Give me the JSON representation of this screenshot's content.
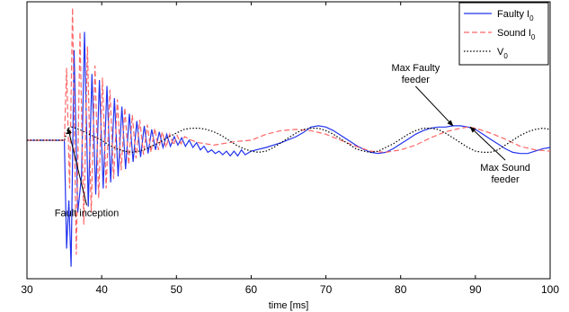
{
  "chart_data": {
    "type": "line",
    "title": "",
    "xlabel": "time [ms]",
    "ylabel": "",
    "xlim": [
      30,
      100
    ],
    "xticks": [
      30,
      40,
      50,
      60,
      70,
      80,
      90,
      100
    ],
    "ylim": [
      -1.15,
      1.15
    ],
    "grid": false,
    "legend_position": "top-right",
    "series": [
      {
        "name": "Faulty I",
        "subscript": "0",
        "color": "#2233ee",
        "style": "solid",
        "points": [
          [
            30,
            0
          ],
          [
            35,
            0
          ],
          [
            35.3,
            -0.9
          ],
          [
            35.6,
            -0.5
          ],
          [
            35.9,
            -1.05
          ],
          [
            36.3,
            0.75
          ],
          [
            36.8,
            -0.6
          ],
          [
            37.3,
            -0.3
          ],
          [
            37.7,
            0.9
          ],
          [
            38.2,
            -0.55
          ],
          [
            38.7,
            0.55
          ],
          [
            39.2,
            -0.45
          ],
          [
            39.7,
            0.5
          ],
          [
            40.2,
            -0.4
          ],
          [
            40.7,
            0.45
          ],
          [
            41.2,
            -0.35
          ],
          [
            41.7,
            0.35
          ],
          [
            42.2,
            -0.3
          ],
          [
            42.7,
            0.28
          ],
          [
            43.2,
            -0.24
          ],
          [
            43.7,
            0.22
          ],
          [
            44.2,
            -0.18
          ],
          [
            44.7,
            0.16
          ],
          [
            45.2,
            -0.14
          ],
          [
            45.7,
            0.12
          ],
          [
            46.2,
            -0.11
          ],
          [
            46.7,
            0.09
          ],
          [
            47.2,
            -0.08
          ],
          [
            47.7,
            0.07
          ],
          [
            48.2,
            -0.06
          ],
          [
            48.7,
            0.05
          ],
          [
            49.2,
            -0.05
          ],
          [
            49.7,
            0.03
          ],
          [
            50.2,
            -0.04
          ],
          [
            50.7,
            0.02
          ],
          [
            51.2,
            -0.05
          ],
          [
            51.7,
            0.0
          ],
          [
            52.2,
            -0.06
          ],
          [
            52.7,
            -0.02
          ],
          [
            53.2,
            -0.08
          ],
          [
            53.7,
            -0.05
          ],
          [
            54.2,
            -0.1
          ],
          [
            54.7,
            -0.08
          ],
          [
            55.2,
            -0.11
          ],
          [
            55.7,
            -0.09
          ],
          [
            56.2,
            -0.12
          ],
          [
            56.7,
            -0.09
          ],
          [
            57.2,
            -0.13
          ],
          [
            57.7,
            -0.09
          ],
          [
            58.2,
            -0.13
          ],
          [
            58.7,
            -0.08
          ],
          [
            59.2,
            -0.12
          ],
          [
            60,
            -0.09
          ],
          [
            62,
            -0.06
          ],
          [
            64,
            -0.02
          ],
          [
            66,
            0.03
          ],
          [
            67,
            0.065
          ],
          [
            68,
            0.11
          ],
          [
            69,
            0.12
          ],
          [
            70,
            0.11
          ],
          [
            71,
            0.08
          ],
          [
            72,
            0.04
          ],
          [
            73,
            0.0
          ],
          [
            74,
            -0.04
          ],
          [
            75,
            -0.075
          ],
          [
            76,
            -0.1
          ],
          [
            77,
            -0.11
          ],
          [
            78,
            -0.1
          ],
          [
            79,
            -0.07
          ],
          [
            80,
            -0.03
          ],
          [
            81,
            0.01
          ],
          [
            82,
            0.05
          ],
          [
            83,
            0.08
          ],
          [
            84,
            0.1
          ],
          [
            85,
            0.11
          ],
          [
            86,
            0.11
          ],
          [
            87,
            0.12
          ],
          [
            88,
            0.12
          ],
          [
            89,
            0.11
          ],
          [
            90,
            0.09
          ],
          [
            91,
            0.05
          ],
          [
            92,
            0.01
          ],
          [
            93,
            -0.03
          ],
          [
            94,
            -0.07
          ],
          [
            95,
            -0.1
          ],
          [
            96,
            -0.11
          ],
          [
            97,
            -0.11
          ],
          [
            98,
            -0.09
          ],
          [
            99,
            -0.07
          ],
          [
            100,
            -0.06
          ]
        ]
      },
      {
        "name": "Sound I",
        "subscript": "0",
        "color": "#ff6666",
        "style": "dashed",
        "points": [
          [
            30,
            0
          ],
          [
            35,
            0
          ],
          [
            35.3,
            0.6
          ],
          [
            35.7,
            -0.4
          ],
          [
            36.1,
            1.1
          ],
          [
            36.6,
            -0.95
          ],
          [
            37.1,
            0.9
          ],
          [
            37.6,
            -0.7
          ],
          [
            38.1,
            0.78
          ],
          [
            38.6,
            -0.6
          ],
          [
            39.1,
            0.62
          ],
          [
            39.6,
            -0.48
          ],
          [
            40.1,
            0.52
          ],
          [
            40.6,
            -0.4
          ],
          [
            41.1,
            0.42
          ],
          [
            41.6,
            -0.32
          ],
          [
            42.1,
            0.34
          ],
          [
            42.6,
            -0.25
          ],
          [
            43.1,
            0.27
          ],
          [
            43.6,
            -0.2
          ],
          [
            44.1,
            0.21
          ],
          [
            44.6,
            -0.15
          ],
          [
            45.1,
            0.17
          ],
          [
            45.6,
            -0.12
          ],
          [
            46.1,
            0.13
          ],
          [
            46.6,
            -0.1
          ],
          [
            47.1,
            0.1
          ],
          [
            47.6,
            -0.08
          ],
          [
            48.1,
            0.07
          ],
          [
            48.6,
            -0.06
          ],
          [
            49.1,
            0.05
          ],
          [
            49.6,
            -0.04
          ],
          [
            50.1,
            0.04
          ],
          [
            50.6,
            -0.03
          ],
          [
            51.1,
            0.03
          ],
          [
            52,
            0.0
          ],
          [
            53,
            -0.02
          ],
          [
            54,
            -0.03
          ],
          [
            55,
            -0.04
          ],
          [
            56,
            -0.03
          ],
          [
            57,
            -0.02
          ],
          [
            58,
            -0.01
          ],
          [
            60,
            0.0
          ],
          [
            62,
            0.05
          ],
          [
            64,
            0.08
          ],
          [
            66,
            0.09
          ],
          [
            68,
            0.08
          ],
          [
            70,
            0.05
          ],
          [
            72,
            0.0
          ],
          [
            74,
            -0.05
          ],
          [
            76,
            -0.09
          ],
          [
            78,
            -0.1
          ],
          [
            80,
            -0.08
          ],
          [
            82,
            -0.04
          ],
          [
            84,
            0.02
          ],
          [
            86,
            0.07
          ],
          [
            88,
            0.1
          ],
          [
            89,
            0.11
          ],
          [
            90,
            0.1
          ],
          [
            92,
            0.06
          ],
          [
            94,
            0.01
          ],
          [
            96,
            -0.05
          ],
          [
            98,
            -0.08
          ],
          [
            100,
            -0.09
          ]
        ]
      },
      {
        "name": "V",
        "subscript": "0",
        "color": "#000000",
        "style": "dotted",
        "points": [
          [
            30,
            0
          ],
          [
            35,
            0
          ],
          [
            35.5,
            0.1
          ],
          [
            36,
            0.11
          ],
          [
            37,
            0.09
          ],
          [
            38,
            0.06
          ],
          [
            39,
            0.03
          ],
          [
            40,
            0.0
          ],
          [
            41,
            -0.04
          ],
          [
            42,
            -0.07
          ],
          [
            43,
            -0.09
          ],
          [
            44,
            -0.1
          ],
          [
            45,
            -0.09
          ],
          [
            46,
            -0.07
          ],
          [
            47,
            -0.04
          ],
          [
            48,
            -0.01
          ],
          [
            49,
            0.03
          ],
          [
            50,
            0.06
          ],
          [
            51,
            0.09
          ],
          [
            52,
            0.1
          ],
          [
            53,
            0.1
          ],
          [
            54,
            0.09
          ],
          [
            55,
            0.07
          ],
          [
            56,
            0.04
          ],
          [
            57,
            0.0
          ],
          [
            58,
            -0.04
          ],
          [
            59,
            -0.07
          ],
          [
            60,
            -0.09
          ],
          [
            61,
            -0.1
          ],
          [
            62,
            -0.09
          ],
          [
            63,
            -0.06
          ],
          [
            64,
            -0.02
          ],
          [
            65,
            0.02
          ],
          [
            66,
            0.06
          ],
          [
            67,
            0.09
          ],
          [
            68,
            0.1
          ],
          [
            69,
            0.1
          ],
          [
            70,
            0.08
          ],
          [
            71,
            0.05
          ],
          [
            72,
            0.01
          ],
          [
            73,
            -0.03
          ],
          [
            74,
            -0.07
          ],
          [
            75,
            -0.09
          ],
          [
            76,
            -0.1
          ],
          [
            77,
            -0.09
          ],
          [
            78,
            -0.06
          ],
          [
            79,
            -0.03
          ],
          [
            80,
            0.01
          ],
          [
            81,
            0.05
          ],
          [
            82,
            0.08
          ],
          [
            83,
            0.1
          ],
          [
            84,
            0.1
          ],
          [
            85,
            0.09
          ],
          [
            86,
            0.06
          ],
          [
            87,
            0.02
          ],
          [
            88,
            -0.02
          ],
          [
            89,
            -0.06
          ],
          [
            90,
            -0.09
          ],
          [
            91,
            -0.1
          ],
          [
            92,
            -0.1
          ],
          [
            93,
            -0.08
          ],
          [
            94,
            -0.04
          ],
          [
            95,
            0.0
          ],
          [
            96,
            0.04
          ],
          [
            97,
            0.07
          ],
          [
            98,
            0.09
          ],
          [
            99,
            0.1
          ],
          [
            100,
            0.09
          ]
        ]
      }
    ],
    "annotations": [
      {
        "id": "fault-inception",
        "lines": [
          "Fault inception"
        ],
        "target": [
          35.5,
          0.1
        ],
        "text_at": [
          38,
          -0.63
        ]
      },
      {
        "id": "max-faulty",
        "lines": [
          "Max Faulty",
          "feeder"
        ],
        "target": [
          87,
          0.12
        ],
        "text_at": [
          82,
          0.53
        ]
      },
      {
        "id": "max-sound",
        "lines": [
          "Max Sound",
          "feeder"
        ],
        "target": [
          89.3,
          0.11
        ],
        "text_at": [
          94,
          -0.3
        ]
      }
    ]
  }
}
